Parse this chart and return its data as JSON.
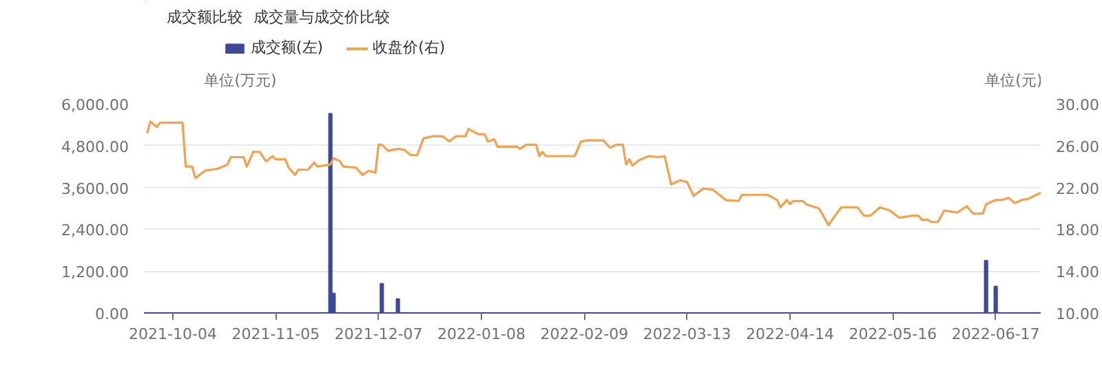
{
  "chart_data": {
    "type": "bar",
    "annotations": [
      "成交额比较",
      "成交量与成交价比较"
    ],
    "ylabel": "单位(万元)",
    "y2label": "单位(元)",
    "xlim": [
      "2021-09-25",
      "2022-07-01"
    ],
    "xticks": [
      "2021-10-04",
      "2021-11-05",
      "2021-12-07",
      "2022-01-08",
      "2022-02-09",
      "2022-03-13",
      "2022-04-14",
      "2022-05-16",
      "2022-06-17"
    ],
    "ylim": [
      0,
      6000
    ],
    "yticks": [
      {
        "value": 0,
        "label": "0.00"
      },
      {
        "value": 1200,
        "label": "1,200.00"
      },
      {
        "value": 2400,
        "label": "2,400.00"
      },
      {
        "value": 3600,
        "label": "3,600.00"
      },
      {
        "value": 4800,
        "label": "4,800.00"
      },
      {
        "value": 6000,
        "label": "6,000.00"
      }
    ],
    "y2lim": [
      10,
      30
    ],
    "y2ticks": [
      {
        "value": 10,
        "label": "10.00"
      },
      {
        "value": 14,
        "label": "14.00"
      },
      {
        "value": 18,
        "label": "18.00"
      },
      {
        "value": 22,
        "label": "22.00"
      },
      {
        "value": 26,
        "label": "26.00"
      },
      {
        "value": 30,
        "label": "30.00"
      }
    ],
    "grid": "y",
    "legend": "top left",
    "series": [
      {
        "name": "成交额(左)",
        "color": "#3d4a9a",
        "x": [
          "2021-11-22",
          "2021-11-23",
          "2021-12-08",
          "2021-12-13",
          "2022-06-14",
          "2022-06-17"
        ],
        "values": [
          5720,
          560,
          840,
          400,
          1500,
          760
        ]
      },
      {
        "name": "收盘价(右)",
        "type": "line",
        "axis": "y2",
        "color": "#f5a04a",
        "x": [
          "2021-09-26",
          "2021-09-27",
          "2021-09-29",
          "2021-09-30",
          "2021-10-07",
          "2021-10-08",
          "2021-10-10",
          "2021-10-11",
          "2021-10-14",
          "2021-10-18",
          "2021-10-21",
          "2021-10-22",
          "2021-10-26",
          "2021-10-27",
          "2021-10-29",
          "2021-10-31",
          "2021-11-02",
          "2021-11-04",
          "2021-11-05",
          "2021-11-08",
          "2021-11-09",
          "2021-11-11",
          "2021-11-12",
          "2021-11-15",
          "2021-11-17",
          "2021-11-18",
          "2021-11-22",
          "2021-11-23",
          "2021-11-25",
          "2021-11-26",
          "2021-11-30",
          "2021-12-02",
          "2021-12-04",
          "2021-12-06",
          "2021-12-07",
          "2021-12-08",
          "2021-12-10",
          "2021-12-13",
          "2021-12-15",
          "2021-12-17",
          "2021-12-19",
          "2021-12-21",
          "2021-12-24",
          "2021-12-27",
          "2021-12-29",
          "2021-12-31",
          "2022-01-03",
          "2022-01-04",
          "2022-01-07",
          "2022-01-09",
          "2022-01-10",
          "2022-01-12",
          "2022-01-13",
          "2022-01-19",
          "2022-01-20",
          "2022-01-22",
          "2022-01-25",
          "2022-01-26",
          "2022-01-27",
          "2022-01-28",
          "2022-02-06",
          "2022-02-08",
          "2022-02-10",
          "2022-02-15",
          "2022-02-17",
          "2022-02-19",
          "2022-02-21",
          "2022-02-22",
          "2022-02-23",
          "2022-02-24",
          "2022-02-26",
          "2022-03-01",
          "2022-03-04",
          "2022-03-06",
          "2022-03-08",
          "2022-03-11",
          "2022-03-13",
          "2022-03-15",
          "2022-03-18",
          "2022-03-21",
          "2022-03-25",
          "2022-03-29",
          "2022-03-30",
          "2022-04-07",
          "2022-04-10",
          "2022-04-11",
          "2022-04-13",
          "2022-04-14",
          "2022-04-15",
          "2022-04-18",
          "2022-04-19",
          "2022-04-23",
          "2022-04-26",
          "2022-04-28",
          "2022-04-30",
          "2022-05-05",
          "2022-05-07",
          "2022-05-09",
          "2022-05-12",
          "2022-05-14",
          "2022-05-15",
          "2022-05-18",
          "2022-05-22",
          "2022-05-24",
          "2022-05-25",
          "2022-05-27",
          "2022-05-28",
          "2022-05-30",
          "2022-06-01",
          "2022-06-05",
          "2022-06-08",
          "2022-06-10",
          "2022-06-13",
          "2022-06-14",
          "2022-06-17",
          "2022-06-19",
          "2022-06-21",
          "2022-06-23",
          "2022-06-25",
          "2022-06-27",
          "2022-06-29",
          "2022-07-01"
        ],
        "values": [
          27.2,
          28.3,
          27.8,
          28.2,
          28.2,
          24.0,
          24.0,
          22.9,
          23.6,
          23.8,
          24.2,
          24.9,
          24.9,
          24.0,
          25.4,
          25.4,
          24.5,
          25.0,
          24.7,
          24.7,
          23.9,
          23.2,
          23.7,
          23.7,
          24.4,
          24.0,
          24.2,
          24.8,
          24.5,
          24.0,
          23.9,
          23.2,
          23.6,
          23.4,
          26.1,
          26.1,
          25.5,
          25.7,
          25.6,
          25.1,
          25.1,
          26.7,
          26.9,
          26.9,
          26.4,
          26.9,
          26.9,
          27.6,
          27.1,
          27.1,
          26.4,
          26.6,
          25.9,
          25.9,
          25.7,
          26.1,
          26.1,
          25.0,
          25.4,
          25.0,
          25.0,
          26.4,
          26.5,
          26.5,
          25.8,
          26.1,
          26.1,
          24.2,
          24.7,
          24.1,
          24.6,
          25.0,
          24.9,
          25.0,
          22.3,
          22.7,
          22.5,
          21.2,
          21.9,
          21.8,
          20.8,
          20.7,
          21.3,
          21.3,
          20.8,
          20.1,
          20.8,
          20.4,
          20.7,
          20.7,
          20.4,
          20.0,
          18.4,
          19.3,
          20.1,
          20.1,
          19.3,
          19.3,
          20.1,
          19.9,
          19.8,
          19.1,
          19.3,
          19.3,
          18.9,
          18.9,
          18.7,
          18.7,
          19.8,
          19.6,
          20.2,
          19.5,
          19.5,
          20.4,
          20.8,
          20.8,
          21.0,
          20.5,
          20.8,
          20.9,
          21.2,
          21.5
        ]
      }
    ]
  }
}
